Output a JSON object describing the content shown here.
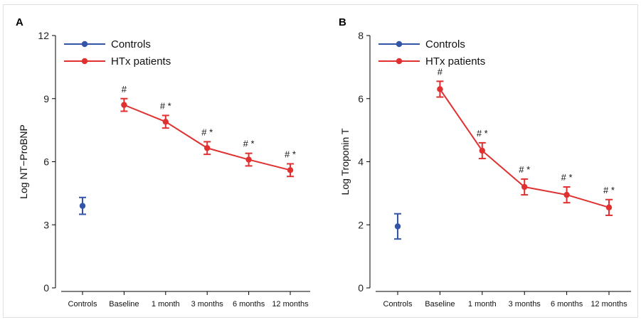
{
  "colors": {
    "controls": "#3355a8",
    "htx": "#e03030",
    "frame": "#e0e0e0"
  },
  "chart_data": [
    {
      "type": "line",
      "panel_label": "A",
      "xlabel": "",
      "ylabel": "Log NT−ProBNP",
      "categories": [
        "Controls",
        "Baseline",
        "1 month",
        "3 months",
        "6 months",
        "12 months"
      ],
      "ylim": [
        0,
        12
      ],
      "yticks": [
        0,
        3,
        6,
        9,
        12
      ],
      "grid": false,
      "legend_position": "top-left",
      "series": [
        {
          "name": "Controls",
          "color": "#3355a8",
          "points": [
            {
              "x": "Controls",
              "y": 3.9,
              "low": 3.5,
              "high": 4.3,
              "annotation": ""
            }
          ]
        },
        {
          "name": "HTx patients",
          "color": "#e03030",
          "points": [
            {
              "x": "Baseline",
              "y": 8.7,
              "low": 8.4,
              "high": 9.0,
              "annotation": "#"
            },
            {
              "x": "1 month",
              "y": 7.9,
              "low": 7.6,
              "high": 8.2,
              "annotation": "# *"
            },
            {
              "x": "3 months",
              "y": 6.65,
              "low": 6.35,
              "high": 6.95,
              "annotation": "# *"
            },
            {
              "x": "6 months",
              "y": 6.1,
              "low": 5.8,
              "high": 6.4,
              "annotation": "# *"
            },
            {
              "x": "12 months",
              "y": 5.6,
              "low": 5.3,
              "high": 5.9,
              "annotation": "# *"
            }
          ]
        }
      ]
    },
    {
      "type": "line",
      "panel_label": "B",
      "xlabel": "",
      "ylabel": "Log Troponin T",
      "categories": [
        "Controls",
        "Baseline",
        "1 month",
        "3 months",
        "6 months",
        "12 months"
      ],
      "ylim": [
        0,
        8
      ],
      "yticks": [
        0,
        2,
        4,
        6,
        8
      ],
      "grid": false,
      "legend_position": "top-left",
      "series": [
        {
          "name": "Controls",
          "color": "#3355a8",
          "points": [
            {
              "x": "Controls",
              "y": 1.95,
              "low": 1.55,
              "high": 2.35,
              "annotation": ""
            }
          ]
        },
        {
          "name": "HTx patients",
          "color": "#e03030",
          "points": [
            {
              "x": "Baseline",
              "y": 6.3,
              "low": 6.05,
              "high": 6.55,
              "annotation": "#"
            },
            {
              "x": "1 month",
              "y": 4.35,
              "low": 4.1,
              "high": 4.6,
              "annotation": "# *"
            },
            {
              "x": "3 months",
              "y": 3.2,
              "low": 2.95,
              "high": 3.45,
              "annotation": "# *"
            },
            {
              "x": "6 months",
              "y": 2.95,
              "low": 2.7,
              "high": 3.2,
              "annotation": "# *"
            },
            {
              "x": "12 months",
              "y": 2.55,
              "low": 2.3,
              "high": 2.8,
              "annotation": "# *"
            }
          ]
        }
      ]
    }
  ]
}
